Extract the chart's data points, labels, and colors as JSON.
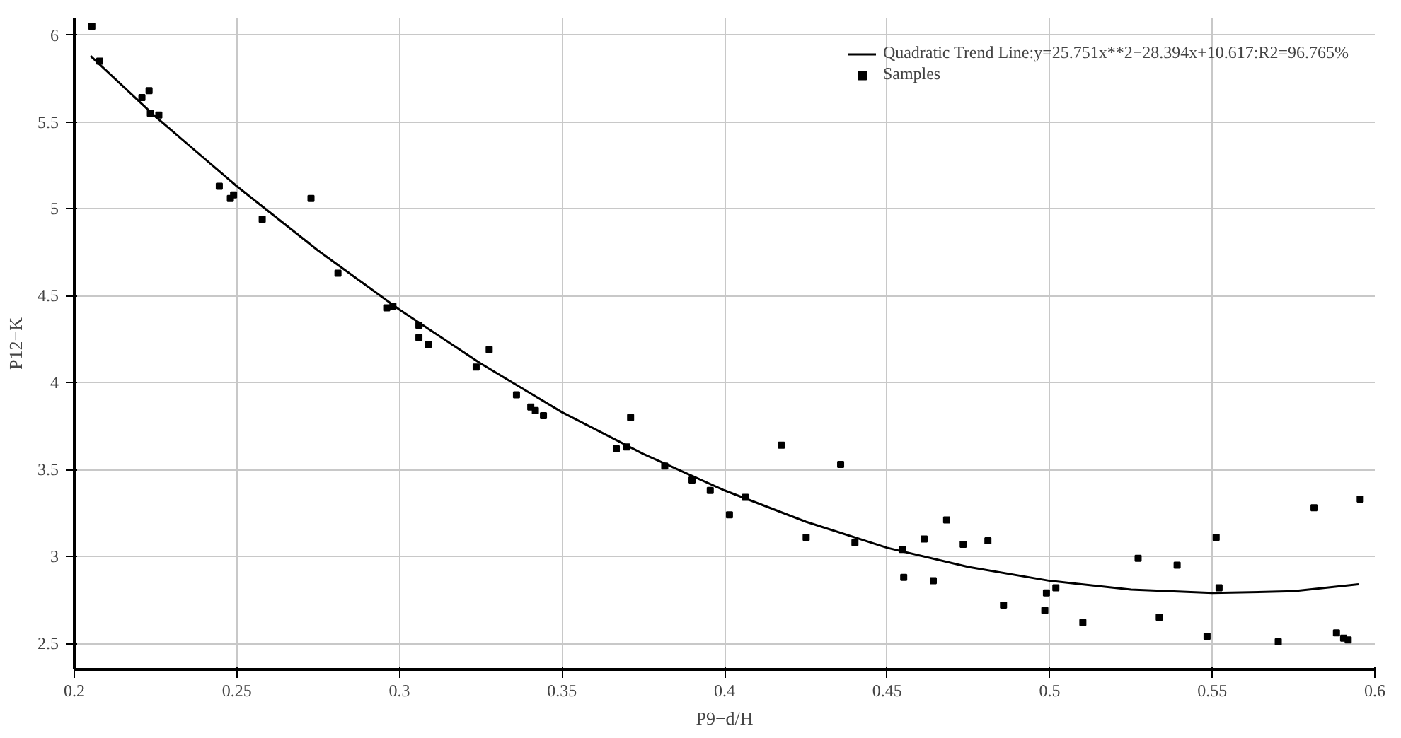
{
  "chart_data": {
    "type": "scatter",
    "xlabel": "P9−d/H",
    "ylabel": "P12−K",
    "xlim": [
      0.2,
      0.6
    ],
    "xticks": [
      0.2,
      0.25,
      0.3,
      0.35,
      0.4,
      0.45,
      0.5,
      0.55,
      0.6
    ],
    "ylim": [
      2.35,
      6.1
    ],
    "yticks": [
      2.5,
      3,
      3.5,
      4,
      4.5,
      5,
      5.5,
      6
    ],
    "grid": true,
    "legend": "top right",
    "series": [
      {
        "name": "Quadratic Trend Line:y=25.751x**2−28.394x+10.617:R2=96.765%",
        "type": "line",
        "color": "#000000",
        "marker": "none",
        "line_style": "solid",
        "x": [
          0.205,
          0.225,
          0.25,
          0.275,
          0.3,
          0.325,
          0.35,
          0.375,
          0.4,
          0.425,
          0.45,
          0.475,
          0.5,
          0.525,
          0.55,
          0.575,
          0.595
        ],
        "values": [
          5.88,
          5.53,
          5.13,
          4.76,
          4.42,
          4.11,
          3.83,
          3.59,
          3.38,
          3.2,
          3.05,
          2.94,
          2.86,
          2.81,
          2.79,
          2.8,
          2.84
        ]
      },
      {
        "name": "Samples",
        "color": "#000000",
        "marker": "square",
        "x": [
          0.2054,
          0.2078,
          0.223,
          0.2208,
          0.2234,
          0.226,
          0.2446,
          0.248,
          0.249,
          0.2578,
          0.2728,
          0.2811,
          0.2961,
          0.298,
          0.306,
          0.306,
          0.3089,
          0.3276,
          0.3236,
          0.336,
          0.3404,
          0.3418,
          0.3443,
          0.3711,
          0.3667,
          0.3699,
          0.3816,
          0.39,
          0.3956,
          0.4015,
          0.4064,
          0.4175,
          0.4251,
          0.4357,
          0.4401,
          0.4547,
          0.4551,
          0.4614,
          0.4642,
          0.4683,
          0.4734,
          0.481,
          0.4858,
          0.4985,
          0.499,
          0.5019,
          0.5102,
          0.5272,
          0.5337,
          0.5392,
          0.5484,
          0.5512,
          0.5521,
          0.5703,
          0.5813,
          0.5882,
          0.5904,
          0.5918,
          0.5955
        ],
        "values": [
          6.05,
          5.85,
          5.68,
          5.64,
          5.55,
          5.54,
          5.13,
          5.06,
          5.08,
          4.94,
          5.06,
          4.63,
          4.43,
          4.44,
          4.33,
          4.26,
          4.22,
          4.19,
          4.09,
          3.93,
          3.86,
          3.84,
          3.81,
          3.8,
          3.62,
          3.63,
          3.52,
          3.44,
          3.38,
          3.24,
          3.34,
          3.64,
          3.11,
          3.53,
          3.08,
          3.04,
          2.88,
          3.1,
          2.86,
          3.21,
          3.07,
          3.09,
          2.72,
          2.69,
          2.79,
          2.82,
          2.62,
          2.99,
          2.65,
          2.95,
          2.54,
          3.11,
          2.82,
          2.51,
          3.28,
          2.56,
          2.53,
          2.52,
          3.33
        ]
      }
    ]
  }
}
